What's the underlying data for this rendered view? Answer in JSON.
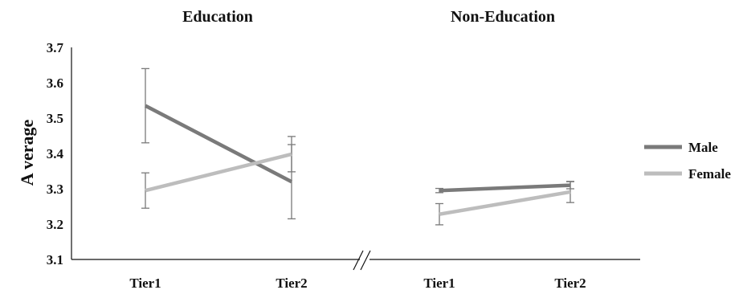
{
  "chart_data": {
    "type": "line",
    "ylabel": "A verage",
    "ylim": [
      3.1,
      3.7
    ],
    "yticks": [
      "3.1",
      "3.2",
      "3.3",
      "3.4",
      "3.5",
      "3.6",
      "3.7"
    ],
    "grid": false,
    "legend_position": "right",
    "panels": [
      {
        "title": "Education",
        "categories": [
          "Tier1",
          "Tier2"
        ],
        "series": [
          {
            "name": "Male",
            "color": "#7a7a7a",
            "values": [
              3.535,
              3.32
            ],
            "error": [
              0.105,
              0.105
            ]
          },
          {
            "name": "Female",
            "color": "#bdbdbd",
            "values": [
              3.295,
              3.398
            ],
            "error": [
              0.05,
              0.05
            ]
          }
        ]
      },
      {
        "title": "Non-Education",
        "categories": [
          "Tier1",
          "Tier2"
        ],
        "series": [
          {
            "name": "Male",
            "color": "#7a7a7a",
            "values": [
              3.295,
              3.31
            ],
            "error": [
              0.006,
              0.01
            ]
          },
          {
            "name": "Female",
            "color": "#bdbdbd",
            "values": [
              3.228,
              3.291
            ],
            "error": [
              0.03,
              0.03
            ]
          }
        ]
      }
    ],
    "legend": [
      {
        "name": "Male",
        "color": "#7a7a7a"
      },
      {
        "name": "Female",
        "color": "#bdbdbd"
      }
    ],
    "axis_break": true
  }
}
